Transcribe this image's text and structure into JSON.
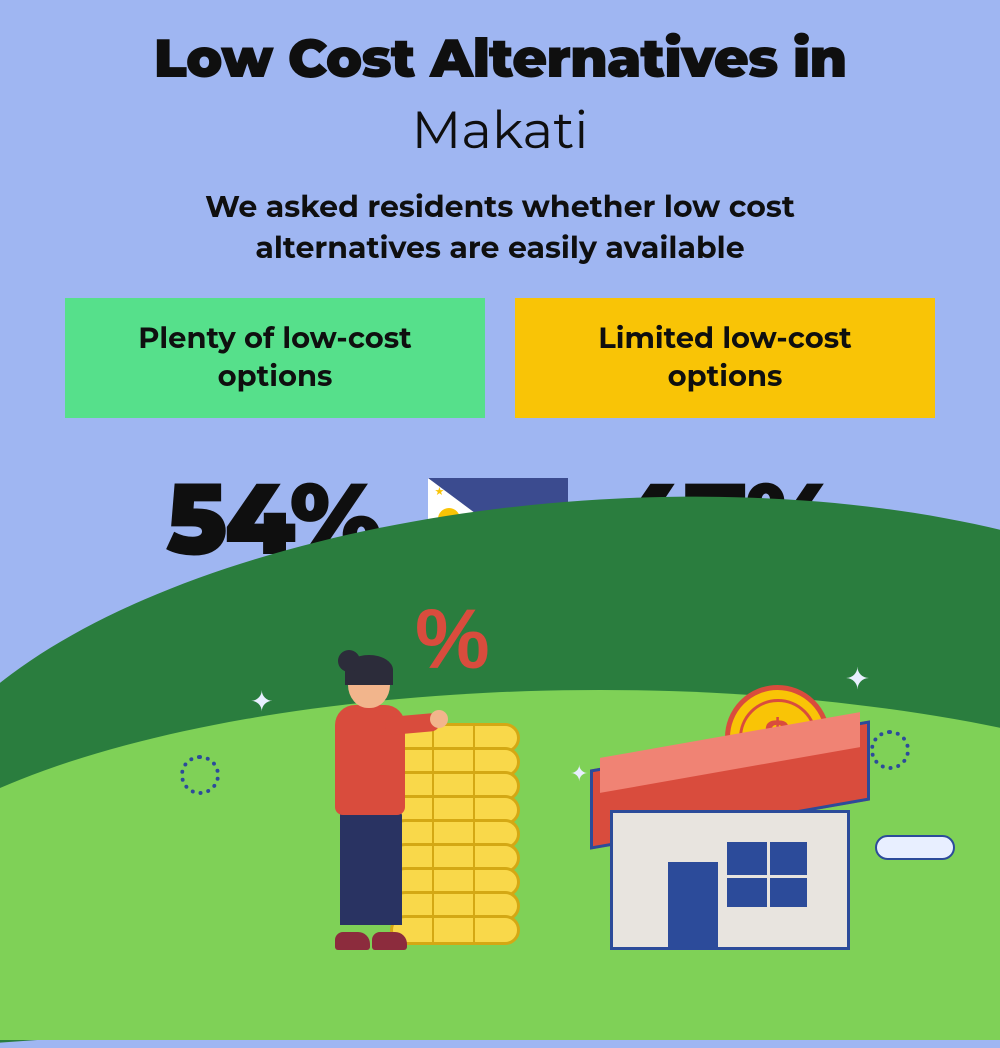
{
  "type": "infographic",
  "background_color": "#9fb6f2",
  "title": {
    "line1": "Low Cost Alternatives in",
    "line1_fontsize": 54,
    "line1_weight": 900,
    "line2": "Makati",
    "line2_fontsize": 52,
    "line2_weight": 400,
    "color": "#0f0f0f"
  },
  "subtitle": {
    "text": "We asked residents whether low cost alternatives are easily available",
    "fontsize": 30,
    "weight": 700,
    "color": "#0f0f0f"
  },
  "cards": [
    {
      "label": "Plenty of low-cost options",
      "bg": "#56e08b",
      "value": "54%"
    },
    {
      "label": "Limited low-cost options",
      "bg": "#f9c406",
      "value": "47%"
    }
  ],
  "card_label_fontsize": 29,
  "stat_fontsize": 100,
  "stat_color": "#0f0f0f",
  "flag": {
    "country": "Philippines",
    "blue": "#3b4b8f",
    "red": "#e8384f",
    "white": "#ffffff",
    "sun": "#f9c406"
  },
  "illustration": {
    "hill_dark": "#2a7d3e",
    "hill_light": "#7fd157",
    "cloud_fill": "#e8efff",
    "outline": "#2c4b9a",
    "coin_fill": "#f9c406",
    "coin_ring": "#d94c3d",
    "coin_symbol": "$",
    "house_wall": "#e8e4df",
    "house_roof": "#d94c3d",
    "house_roof_top": "#f08374",
    "house_door": "#2c4b9a",
    "house_window": "#2c4b9a",
    "stack_fill": "#f9d84a",
    "stack_edge": "#d4a814",
    "stack_rows": 9,
    "pct_color": "#d94c3d",
    "pct_text": "%",
    "person_skin": "#f2b58c",
    "person_hair": "#2c2c3a",
    "person_top": "#d94c3d",
    "person_pants": "#293362",
    "person_shoes": "#8c2c3d",
    "sparkle_color": "#e8efff"
  }
}
